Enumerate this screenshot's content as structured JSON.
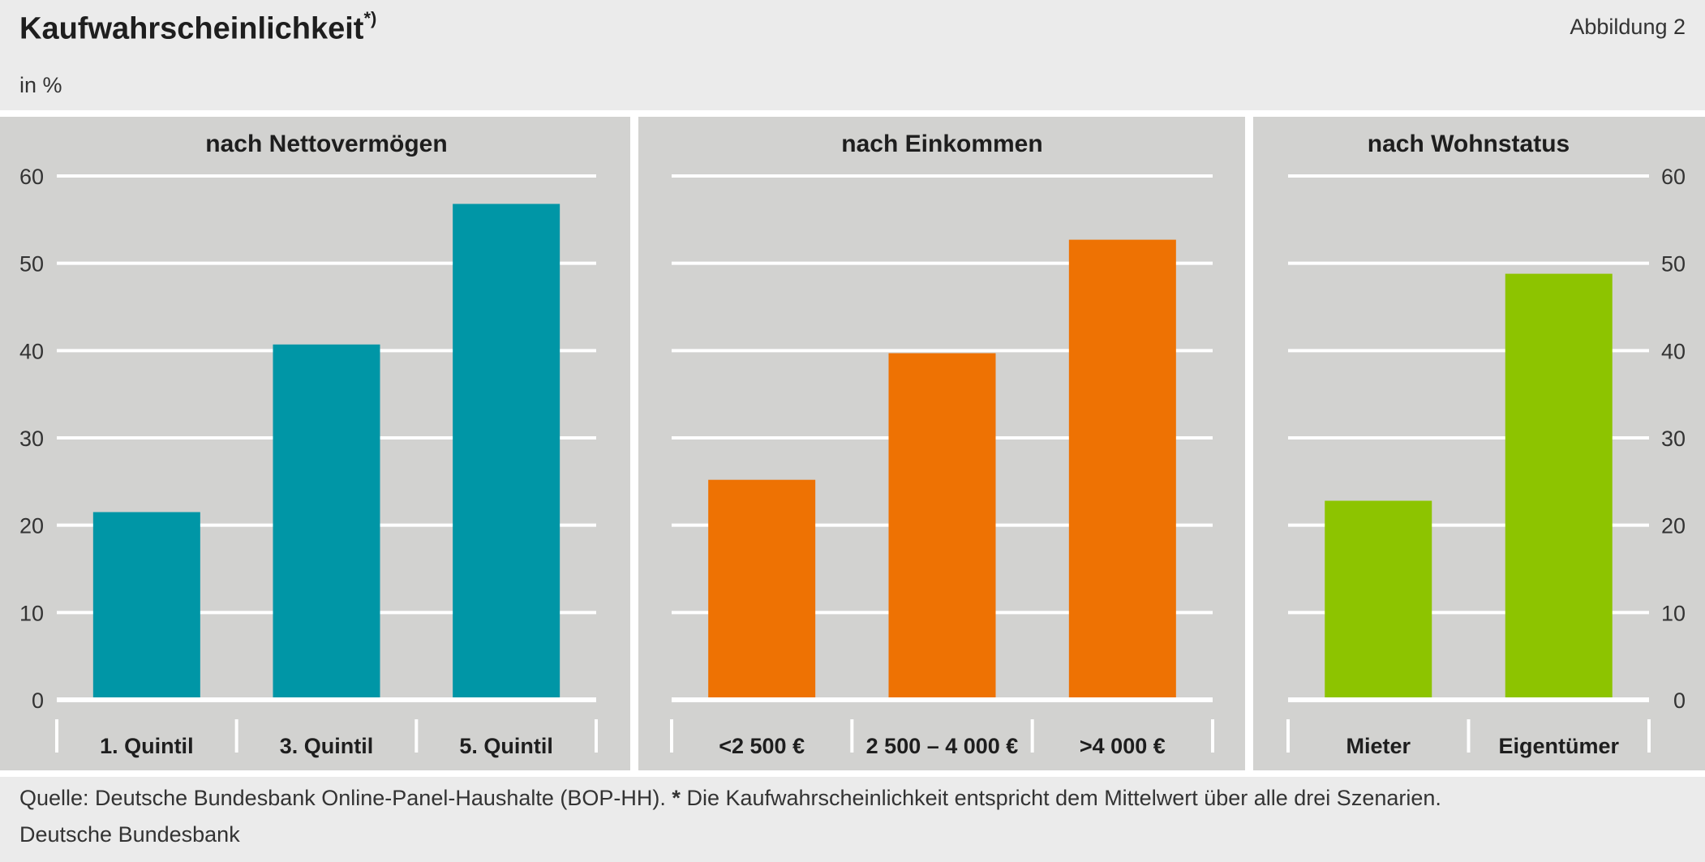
{
  "title": "Kaufwahrscheinlichkeit",
  "title_marker": "*)",
  "figure_label": "Abbildung 2",
  "unit": "in %",
  "source_prefix": "Quelle: Deutsche Bundesbank Online-Panel-Haushalte (BOP-HH).",
  "source_star": "*",
  "source_note": "Die Kaufwahrscheinlichkeit entspricht dem Mittelwert über alle drei Szenarien.",
  "publisher": "Deutsche Bundesbank",
  "colors": {
    "panel_bg": "#d2d2d0",
    "page_bg": "#ebebeb",
    "gridline": "#ffffff",
    "nettovermoegen": "#0096a6",
    "einkommen": "#ee7203",
    "wohnstatus": "#8dc400"
  },
  "chart_data": [
    {
      "type": "bar",
      "title": "nach Nettovermögen",
      "categories": [
        "1. Quintil",
        "3. Quintil",
        "5. Quintil"
      ],
      "values": [
        21.5,
        40.7,
        56.8
      ],
      "ylim": [
        0,
        60
      ],
      "yticks": [
        0,
        10,
        20,
        30,
        40,
        50,
        60
      ],
      "y_axis_side": "left",
      "grid": true,
      "color": "#0096a6"
    },
    {
      "type": "bar",
      "title": "nach Einkommen",
      "categories": [
        "<2 500 €",
        "2 500 – 4 000 €",
        ">4 000 €"
      ],
      "values": [
        25.2,
        39.7,
        52.7
      ],
      "ylim": [
        0,
        60
      ],
      "yticks": [
        0,
        10,
        20,
        30,
        40,
        50,
        60
      ],
      "grid": true,
      "color": "#ee7203"
    },
    {
      "type": "bar",
      "title": "nach Wohnstatus",
      "categories": [
        "Mieter",
        "Eigentümer"
      ],
      "values": [
        22.8,
        48.8
      ],
      "ylim": [
        0,
        60
      ],
      "yticks": [
        0,
        10,
        20,
        30,
        40,
        50,
        60
      ],
      "y_axis_side": "right",
      "grid": true,
      "color": "#8dc400"
    }
  ]
}
